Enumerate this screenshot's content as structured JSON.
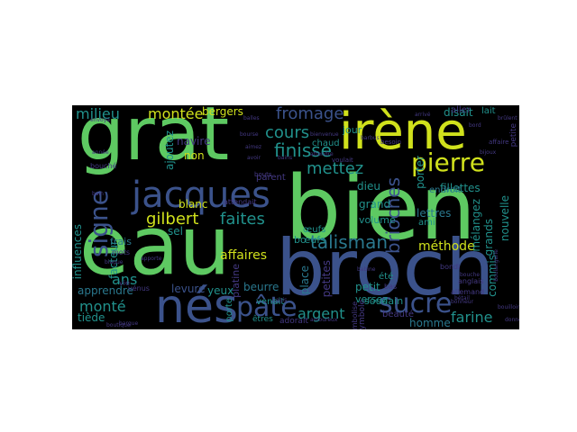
{
  "cloud": {
    "background": "#000000",
    "words": [
      {
        "text": "bien",
        "color": "#5ec962"
      },
      {
        "text": "eau",
        "color": "#5ec962"
      },
      {
        "text": "broch",
        "color": "#3b528b"
      },
      {
        "text": "grat",
        "color": "#5ec962"
      },
      {
        "text": "irène",
        "color": "#d0e11c"
      },
      {
        "text": "jacques",
        "color": "#3b528b"
      },
      {
        "text": "nés",
        "color": "#3b528b"
      },
      {
        "text": "pâte",
        "color": "#3b528b"
      },
      {
        "text": "sucre",
        "color": "#3b528b"
      },
      {
        "text": "signe",
        "color": "#3b528b"
      },
      {
        "text": "pierre",
        "color": "#d0e11c"
      },
      {
        "text": "talisman",
        "color": "#2a788e"
      },
      {
        "text": "brioches",
        "color": "#3b528b"
      },
      {
        "text": "finisse",
        "color": "#21918c"
      },
      {
        "text": "fromage",
        "color": "#3b528b"
      },
      {
        "text": "mettez",
        "color": "#21918c"
      },
      {
        "text": "cours",
        "color": "#21918c"
      },
      {
        "text": "gilbert",
        "color": "#d0e11c"
      },
      {
        "text": "faites",
        "color": "#21918c"
      },
      {
        "text": "montée",
        "color": "#d0e11c"
      },
      {
        "text": "milieu",
        "color": "#21918c"
      },
      {
        "text": "argent",
        "color": "#21918c"
      },
      {
        "text": "farine",
        "color": "#21918c"
      },
      {
        "text": "monté",
        "color": "#21918c"
      },
      {
        "text": "ans",
        "color": "#21918c"
      },
      {
        "text": "affaires",
        "color": "#d0e11c"
      },
      {
        "text": "méthode",
        "color": "#d0e11c"
      },
      {
        "text": "bergers",
        "color": "#d0e11c"
      },
      {
        "text": "lettres",
        "color": "#2a788e"
      },
      {
        "text": "commis",
        "color": "#21918c"
      },
      {
        "text": "grands",
        "color": "#21918c"
      },
      {
        "text": "apprendre",
        "color": "#2a788e"
      },
      {
        "text": "tiède",
        "color": "#21918c"
      },
      {
        "text": "yeux",
        "color": "#21918c"
      },
      {
        "text": "beurre",
        "color": "#2a788e"
      },
      {
        "text": "levure",
        "color": "#3b528b"
      },
      {
        "text": "homme",
        "color": "#2a788e"
      },
      {
        "text": "beauté",
        "color": "#443983"
      },
      {
        "text": "petites",
        "color": "#443983"
      },
      {
        "text": "petit",
        "color": "#21918c"
      },
      {
        "text": "grand",
        "color": "#21918c"
      },
      {
        "text": "bœufs",
        "color": "#21918c"
      },
      {
        "text": "œufs",
        "color": "#21918c"
      },
      {
        "text": "disait",
        "color": "#21918c"
      },
      {
        "text": "porter",
        "color": "#21918c"
      },
      {
        "text": "facteur",
        "color": "#21918c"
      },
      {
        "text": "influences",
        "color": "#21918c"
      },
      {
        "text": "nouvelle",
        "color": "#21918c"
      },
      {
        "text": "ajoutez",
        "color": "#21918c"
      },
      {
        "text": "fillettes",
        "color": "#21918c"
      },
      {
        "text": "mélangez",
        "color": "#21918c"
      },
      {
        "text": "navire",
        "color": "#443983"
      },
      {
        "text": "non",
        "color": "#d0e11c"
      },
      {
        "text": "blanc",
        "color": "#d0e11c"
      },
      {
        "text": "chaud",
        "color": "#21918c"
      },
      {
        "text": "dieu",
        "color": "#21918c"
      },
      {
        "text": "jour",
        "color": "#21918c"
      },
      {
        "text": "sel",
        "color": "#21918c"
      },
      {
        "text": "frais",
        "color": "#2a788e"
      },
      {
        "text": "versez",
        "color": "#21918c"
      },
      {
        "text": "volume",
        "color": "#21918c"
      },
      {
        "text": "soudain",
        "color": "#21918c"
      },
      {
        "text": "lait",
        "color": "#21918c"
      },
      {
        "text": "aller",
        "color": "#443983"
      },
      {
        "text": "endroit",
        "color": "#2a788e"
      },
      {
        "text": "place",
        "color": "#2a788e"
      },
      {
        "text": "platine",
        "color": "#443983"
      },
      {
        "text": "venait",
        "color": "#21918c"
      },
      {
        "text": "porte",
        "color": "#21918c"
      },
      {
        "text": "parent",
        "color": "#443983"
      },
      {
        "text": "ami",
        "color": "#21918c"
      },
      {
        "text": "été",
        "color": "#21918c"
      },
      {
        "text": "êtres",
        "color": "#21918c"
      },
      {
        "text": "adorait",
        "color": "#443983"
      },
      {
        "text": "symbole",
        "color": "#443983"
      },
      {
        "text": "vénus",
        "color": "#443983"
      },
      {
        "text": "bouché",
        "color": "#443983"
      },
      {
        "text": "mots",
        "color": "#443983"
      },
      {
        "text": "petite",
        "color": "#443983"
      },
      {
        "text": "bondi",
        "color": "#443983"
      },
      {
        "text": "anglais",
        "color": "#443983"
      },
      {
        "text": "allemand",
        "color": "#443983"
      },
      {
        "text": "bas",
        "color": "#443983"
      },
      {
        "text": "vie",
        "color": "#443983"
      },
      {
        "text": "attendait",
        "color": "#443983"
      },
      {
        "text": "symbolise",
        "color": "#443983"
      },
      {
        "text": "voulait",
        "color": "#443983"
      },
      {
        "text": "affaire",
        "color": "#443983"
      },
      {
        "text": "bouts",
        "color": "#443983"
      },
      {
        "text": "besoin",
        "color": "#443983"
      },
      {
        "text": "balles",
        "color": "#443983"
      },
      {
        "text": "donne",
        "color": "#443983"
      },
      {
        "text": "envoya",
        "color": "#443983"
      },
      {
        "text": "amoureux",
        "color": "#443983"
      },
      {
        "text": "bourse",
        "color": "#443983"
      },
      {
        "text": "agis",
        "color": "#443983"
      },
      {
        "text": "apporte",
        "color": "#443983"
      },
      {
        "text": "aimez",
        "color": "#443983"
      },
      {
        "text": "barbus",
        "color": "#443983"
      },
      {
        "text": "boulangerie",
        "color": "#443983"
      },
      {
        "text": "bonheur",
        "color": "#443983"
      },
      {
        "text": "bord",
        "color": "#443983"
      },
      {
        "text": "bain",
        "color": "#443983"
      },
      {
        "text": "boutique",
        "color": "#443983"
      },
      {
        "text": "bouche",
        "color": "#443983"
      },
      {
        "text": "arrivé",
        "color": "#443983"
      },
      {
        "text": "avoir",
        "color": "#443983"
      },
      {
        "text": "bouilloire",
        "color": "#443983"
      },
      {
        "text": "bains",
        "color": "#443983"
      },
      {
        "text": "barque",
        "color": "#443983"
      },
      {
        "text": "bijoux",
        "color": "#443983"
      },
      {
        "text": "attendre",
        "color": "#443983"
      },
      {
        "text": "année",
        "color": "#443983"
      },
      {
        "text": "babine",
        "color": "#443983"
      },
      {
        "text": "blague",
        "color": "#443983"
      },
      {
        "text": "bétail",
        "color": "#443983"
      },
      {
        "text": "bienvenue",
        "color": "#443983"
      },
      {
        "text": "brûlent",
        "color": "#443983"
      },
      {
        "text": "blancs",
        "color": "#443983"
      }
    ]
  }
}
